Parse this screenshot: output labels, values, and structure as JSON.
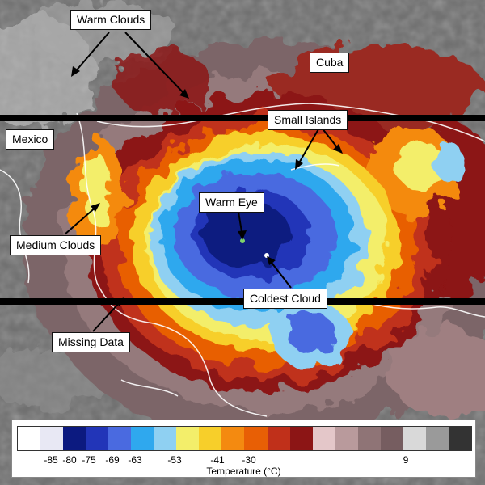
{
  "labels": {
    "warm_clouds": "Warm Clouds",
    "cuba": "Cuba",
    "mexico": "Mexico",
    "small_islands": "Small Islands",
    "warm_eye": "Warm Eye",
    "medium_clouds": "Medium Clouds",
    "coldest_cloud": "Coldest Cloud",
    "missing_data": "Missing Data"
  },
  "legend": {
    "title": "Temperature (°C)",
    "ticks": [
      "-85",
      "-80",
      "-75",
      "-69",
      "-63",
      "-53",
      "-41",
      "-30",
      "9"
    ],
    "colors": [
      "#ffffff",
      "#e8e8f4",
      "#0c1a80",
      "#2235b8",
      "#4a6ae0",
      "#2fa8ee",
      "#8fd0f2",
      "#f3ee6a",
      "#f7cf2a",
      "#f48a10",
      "#e85f05",
      "#c0301a",
      "#8c1515",
      "#e4c7c9",
      "#b99a9c",
      "#8f7476",
      "#765d60",
      "#d9d9d9",
      "#9a9a9a",
      "#333333"
    ]
  },
  "colors": {
    "eye_core": "#0c1a80",
    "deep_blue": "#2235b8",
    "blue": "#4a6ae0",
    "cyan": "#2fa8ee",
    "light_blue": "#8fd0f2",
    "yellow": "#f3ee6a",
    "orange": "#f48a10",
    "red": "#c0301a",
    "dark_red": "#8c1515",
    "pink_gray": "#8f7476",
    "gray": "#7a7a7a",
    "missing_data": "#000000"
  }
}
